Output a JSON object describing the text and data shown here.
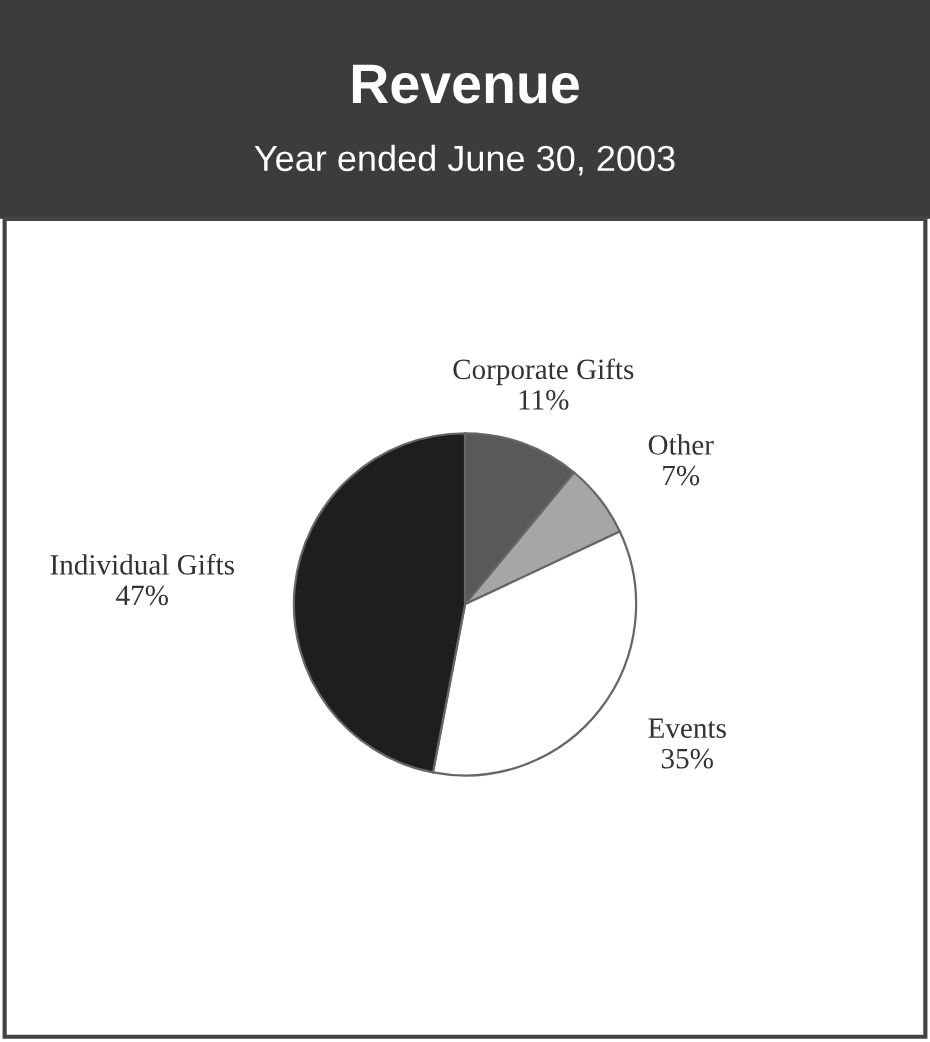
{
  "chart_data": {
    "type": "pie",
    "title": "Revenue",
    "subtitle": "Year ended June 30, 2003",
    "categories": [
      "Corporate Gifts",
      "Other",
      "Events",
      "Individual Gifts"
    ],
    "values": [
      11,
      7,
      35,
      47
    ],
    "colors": [
      "#595959",
      "#a6a6a6",
      "#ffffff",
      "#1e1e1e"
    ],
    "value_labels": [
      "11%",
      "7%",
      "35%",
      "47%"
    ],
    "legend": false
  }
}
